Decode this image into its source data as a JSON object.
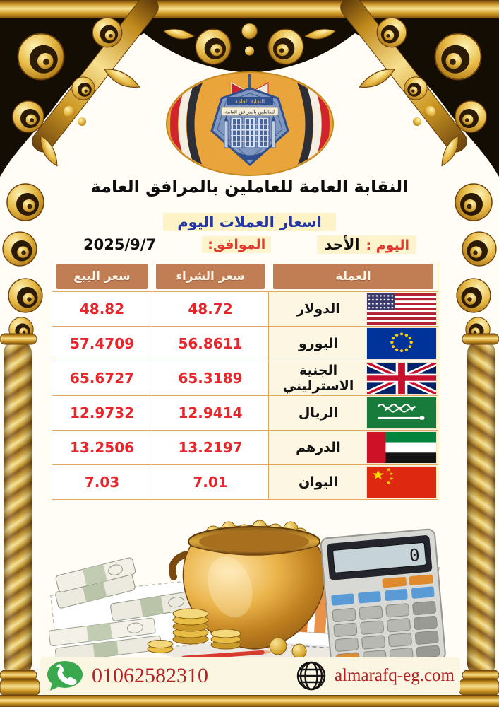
{
  "header": {
    "org_name": "النقابة العامة للعاملين بالمرافق العامة",
    "subtitle": "اسعار العملات اليوم",
    "day_label": "اليوم :",
    "day_value": "الأحد",
    "date_label": "الموافق:",
    "date_value": "2025/9/7",
    "logo": {
      "emblem_top_text": "النقابة العامة",
      "emblem_band_text": "للعاملين بالمرافق العامة"
    }
  },
  "rates_table": {
    "columns": {
      "currency": "العملة",
      "buy": "سعر الشراء",
      "sell": "سعر البيع"
    },
    "rows": [
      {
        "currency": "الدولار",
        "flag": "us",
        "buy": "48.72",
        "sell": "48.82"
      },
      {
        "currency": "اليورو",
        "flag": "eu",
        "buy": "56.8611",
        "sell": "57.4709"
      },
      {
        "currency": "الجنية الاسترليني",
        "flag": "gb",
        "buy": "65.3189",
        "sell": "65.6727"
      },
      {
        "currency": "الريال",
        "flag": "sa",
        "buy": "12.9414",
        "sell": "12.9732"
      },
      {
        "currency": "الدرهم",
        "flag": "ae",
        "buy": "13.2197",
        "sell": "13.2506"
      },
      {
        "currency": "اليوان",
        "flag": "cn",
        "buy": "7.01",
        "sell": "7.03"
      }
    ]
  },
  "illustration": {
    "calculator_display": "0"
  },
  "footer": {
    "phone": "01062582310",
    "website": "almarafq-eg.com"
  },
  "colors": {
    "frame_gold": "#d39a26",
    "header_copper": "#c17d54",
    "price_red": "#e8252a",
    "label_red": "#e23a2e",
    "subtitle_blue": "#2336a8",
    "highlight_yellow": "#fdf3c6",
    "contact_red": "#b51f23",
    "logo_orange": "#e9a43c"
  }
}
